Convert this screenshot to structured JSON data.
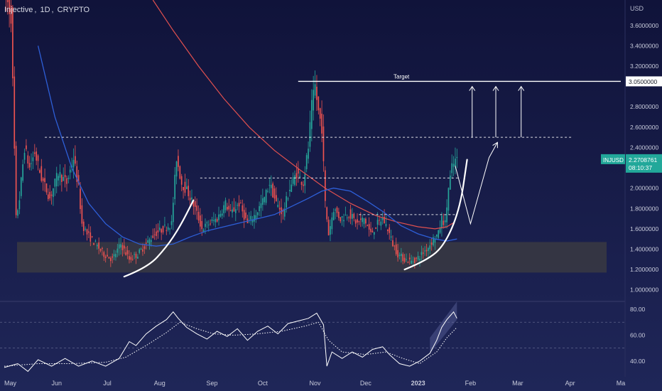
{
  "header": {
    "symbol_name": "Injective",
    "interval": "1D",
    "exchange": "CRYPTO",
    "separator": ", "
  },
  "colors": {
    "background_top": "#11143a",
    "background_bottom": "#1d2356",
    "candle_up": "#26a69a",
    "candle_down": "#ef5350",
    "ma_slow": "#e0504f",
    "ma_fast": "#2e5fd8",
    "support_zone": "#3a3a42",
    "annotation": "#ffffff",
    "price_badge": "#22a89a",
    "indicator_line": "#ffffff",
    "pane_divider": "#2a2f5e"
  },
  "chart_data": {
    "type": "candlestick",
    "symbol": "INJUSD",
    "currency": "USD",
    "price_axis": {
      "unit_label": "USD",
      "ylim": [
        0.9,
        3.85
      ],
      "ticks": [
        {
          "v": 1.0,
          "label": "1.0000000"
        },
        {
          "v": 1.2,
          "label": "1.2000000"
        },
        {
          "v": 1.4,
          "label": "1.4000000"
        },
        {
          "v": 1.6,
          "label": "1.6000000"
        },
        {
          "v": 1.8,
          "label": "1.8000000"
        },
        {
          "v": 2.0,
          "label": "2.0000000"
        },
        {
          "v": 2.4,
          "label": "2.4000000"
        },
        {
          "v": 2.6,
          "label": "2.6000000"
        },
        {
          "v": 2.8,
          "label": "2.8000000"
        },
        {
          "v": 3.2,
          "label": "3.2000000"
        },
        {
          "v": 3.4,
          "label": "3.4000000"
        },
        {
          "v": 3.6,
          "label": "3.6000000"
        }
      ],
      "target_badge": {
        "v": 3.05,
        "label": "3.0500000"
      },
      "last_price_badge": {
        "v": 2.2708761,
        "symbol": "INJUSD",
        "price": "2.2708761",
        "countdown": "08:10:37"
      }
    },
    "time_axis": {
      "ticks": [
        {
          "d": 0,
          "label": "May"
        },
        {
          "d": 31,
          "label": "Jun"
        },
        {
          "d": 61,
          "label": "Jul"
        },
        {
          "d": 92,
          "label": "Aug"
        },
        {
          "d": 123,
          "label": "Sep"
        },
        {
          "d": 153,
          "label": "Oct"
        },
        {
          "d": 184,
          "label": "Nov"
        },
        {
          "d": 214,
          "label": "Dec"
        },
        {
          "d": 245,
          "label": "2023"
        },
        {
          "d": 276,
          "label": "Feb"
        },
        {
          "d": 304,
          "label": "Mar"
        },
        {
          "d": 335,
          "label": "Apr"
        },
        {
          "d": 365,
          "label": "Ma"
        }
      ],
      "xlim": [
        0,
        365
      ]
    },
    "price_path": [
      [
        0,
        4.0
      ],
      [
        5,
        3.7
      ],
      [
        8,
        1.7
      ],
      [
        10,
        1.9
      ],
      [
        13,
        2.4
      ],
      [
        16,
        2.2
      ],
      [
        19,
        2.35
      ],
      [
        23,
        2.1
      ],
      [
        28,
        1.9
      ],
      [
        33,
        2.15
      ],
      [
        38,
        2.05
      ],
      [
        42,
        2.3
      ],
      [
        45,
        2.0
      ],
      [
        47,
        1.65
      ],
      [
        50,
        1.55
      ],
      [
        55,
        1.45
      ],
      [
        60,
        1.35
      ],
      [
        65,
        1.3
      ],
      [
        70,
        1.45
      ],
      [
        75,
        1.3
      ],
      [
        80,
        1.35
      ],
      [
        85,
        1.45
      ],
      [
        90,
        1.55
      ],
      [
        95,
        1.6
      ],
      [
        100,
        1.65
      ],
      [
        103,
        2.3
      ],
      [
        106,
        2.05
      ],
      [
        110,
        1.95
      ],
      [
        114,
        1.8
      ],
      [
        118,
        1.6
      ],
      [
        122,
        1.65
      ],
      [
        127,
        1.7
      ],
      [
        132,
        1.85
      ],
      [
        135,
        1.75
      ],
      [
        140,
        1.85
      ],
      [
        145,
        1.65
      ],
      [
        150,
        1.75
      ],
      [
        155,
        1.9
      ],
      [
        158,
        2.05
      ],
      [
        162,
        1.85
      ],
      [
        166,
        1.75
      ],
      [
        170,
        2.0
      ],
      [
        174,
        2.15
      ],
      [
        178,
        2.05
      ],
      [
        181,
        2.4
      ],
      [
        183,
        2.8
      ],
      [
        185,
        3.0
      ],
      [
        187,
        2.75
      ],
      [
        189,
        2.6
      ],
      [
        191,
        1.85
      ],
      [
        193,
        1.55
      ],
      [
        196,
        1.8
      ],
      [
        200,
        1.7
      ],
      [
        205,
        1.75
      ],
      [
        210,
        1.65
      ],
      [
        214,
        1.7
      ],
      [
        218,
        1.55
      ],
      [
        222,
        1.65
      ],
      [
        225,
        1.7
      ],
      [
        228,
        1.6
      ],
      [
        231,
        1.45
      ],
      [
        234,
        1.35
      ],
      [
        238,
        1.3
      ],
      [
        242,
        1.28
      ],
      [
        245,
        1.3
      ],
      [
        248,
        1.35
      ],
      [
        252,
        1.42
      ],
      [
        255,
        1.5
      ],
      [
        258,
        1.55
      ],
      [
        260,
        1.7
      ],
      [
        262,
        1.65
      ],
      [
        264,
        2.0
      ],
      [
        266,
        2.2
      ],
      [
        268,
        2.27
      ]
    ],
    "ma_slow": [
      [
        88,
        3.85
      ],
      [
        100,
        3.55
      ],
      [
        115,
        3.2
      ],
      [
        130,
        2.88
      ],
      [
        145,
        2.6
      ],
      [
        160,
        2.37
      ],
      [
        175,
        2.18
      ],
      [
        190,
        2.0
      ],
      [
        205,
        1.85
      ],
      [
        220,
        1.73
      ],
      [
        232,
        1.67
      ],
      [
        245,
        1.62
      ],
      [
        255,
        1.6
      ],
      [
        262,
        1.62
      ],
      [
        266,
        1.66
      ]
    ],
    "ma_fast": [
      [
        20,
        3.4
      ],
      [
        30,
        2.7
      ],
      [
        40,
        2.2
      ],
      [
        50,
        1.85
      ],
      [
        60,
        1.65
      ],
      [
        70,
        1.52
      ],
      [
        80,
        1.45
      ],
      [
        90,
        1.43
      ],
      [
        100,
        1.45
      ],
      [
        110,
        1.52
      ],
      [
        120,
        1.58
      ],
      [
        130,
        1.62
      ],
      [
        140,
        1.66
      ],
      [
        150,
        1.7
      ],
      [
        160,
        1.74
      ],
      [
        170,
        1.82
      ],
      [
        180,
        1.9
      ],
      [
        188,
        1.97
      ],
      [
        195,
        2.0
      ],
      [
        205,
        1.97
      ],
      [
        215,
        1.87
      ],
      [
        225,
        1.76
      ],
      [
        235,
        1.63
      ],
      [
        245,
        1.55
      ],
      [
        255,
        1.5
      ],
      [
        262,
        1.48
      ],
      [
        268,
        1.5
      ]
    ],
    "support_zone": {
      "from_day": 0,
      "to_day": 365,
      "price_low": 1.17,
      "price_high": 1.47
    },
    "levels": [
      {
        "from_day": 24,
        "to_day": 336,
        "price": 2.5,
        "style": "dashed"
      },
      {
        "from_day": 116,
        "to_day": 270,
        "price": 2.1,
        "style": "dashed"
      },
      {
        "from_day": 210,
        "to_day": 268,
        "price": 1.74,
        "style": "dashed"
      },
      {
        "from_day": 174,
        "to_day": 365,
        "price": 3.05,
        "style": "solid",
        "label": "Target"
      }
    ],
    "annotations": {
      "left_arc": [
        [
          71,
          1.13
        ],
        [
          85,
          1.22
        ],
        [
          96,
          1.42
        ],
        [
          104,
          1.62
        ],
        [
          112,
          1.88
        ]
      ],
      "right_arc": [
        [
          237,
          1.2
        ],
        [
          252,
          1.3
        ],
        [
          262,
          1.48
        ],
        [
          270,
          1.82
        ],
        [
          274,
          2.28
        ]
      ],
      "zigzag": [
        [
          267,
          2.22
        ],
        [
          276,
          1.65
        ],
        [
          287,
          2.3
        ],
        [
          292,
          2.45
        ]
      ],
      "target_arrows": [
        {
          "day": 277,
          "from": 2.5,
          "to": 3.0
        },
        {
          "day": 291,
          "from": 2.5,
          "to": 3.0
        },
        {
          "day": 306,
          "from": 2.5,
          "to": 3.0
        }
      ]
    },
    "indicator": {
      "ylim": [
        30,
        85
      ],
      "ticks": [
        {
          "v": 40,
          "label": "40.00"
        },
        {
          "v": 60,
          "label": "60.00"
        },
        {
          "v": 80,
          "label": "80.00"
        }
      ],
      "levels": [
        50,
        70
      ],
      "line": [
        [
          0,
          35
        ],
        [
          8,
          38
        ],
        [
          14,
          32
        ],
        [
          20,
          41
        ],
        [
          28,
          36
        ],
        [
          36,
          42
        ],
        [
          44,
          36
        ],
        [
          52,
          40
        ],
        [
          60,
          36
        ],
        [
          68,
          42
        ],
        [
          74,
          55
        ],
        [
          78,
          52
        ],
        [
          84,
          61
        ],
        [
          90,
          67
        ],
        [
          96,
          72
        ],
        [
          100,
          78
        ],
        [
          103,
          73
        ],
        [
          108,
          66
        ],
        [
          114,
          61
        ],
        [
          120,
          57
        ],
        [
          126,
          63
        ],
        [
          132,
          59
        ],
        [
          138,
          65
        ],
        [
          144,
          56
        ],
        [
          150,
          63
        ],
        [
          156,
          67
        ],
        [
          162,
          61
        ],
        [
          168,
          69
        ],
        [
          174,
          71
        ],
        [
          180,
          73
        ],
        [
          185,
          77
        ],
        [
          189,
          68
        ],
        [
          191,
          36
        ],
        [
          194,
          47
        ],
        [
          200,
          42
        ],
        [
          206,
          47
        ],
        [
          212,
          43
        ],
        [
          218,
          49
        ],
        [
          224,
          51
        ],
        [
          228,
          45
        ],
        [
          234,
          38
        ],
        [
          240,
          36
        ],
        [
          246,
          40
        ],
        [
          252,
          46
        ],
        [
          256,
          56
        ],
        [
          259,
          66
        ],
        [
          262,
          72
        ],
        [
          266,
          78
        ],
        [
          268,
          73
        ]
      ],
      "signal": [
        [
          0,
          36
        ],
        [
          20,
          38
        ],
        [
          40,
          38
        ],
        [
          60,
          39
        ],
        [
          72,
          43
        ],
        [
          84,
          52
        ],
        [
          96,
          62
        ],
        [
          104,
          70
        ],
        [
          114,
          65
        ],
        [
          124,
          61
        ],
        [
          136,
          60
        ],
        [
          150,
          61
        ],
        [
          164,
          63
        ],
        [
          178,
          67
        ],
        [
          186,
          70
        ],
        [
          192,
          56
        ],
        [
          200,
          47
        ],
        [
          214,
          45
        ],
        [
          226,
          47
        ],
        [
          236,
          42
        ],
        [
          246,
          38
        ],
        [
          256,
          47
        ],
        [
          262,
          58
        ],
        [
          268,
          66
        ]
      ]
    }
  }
}
